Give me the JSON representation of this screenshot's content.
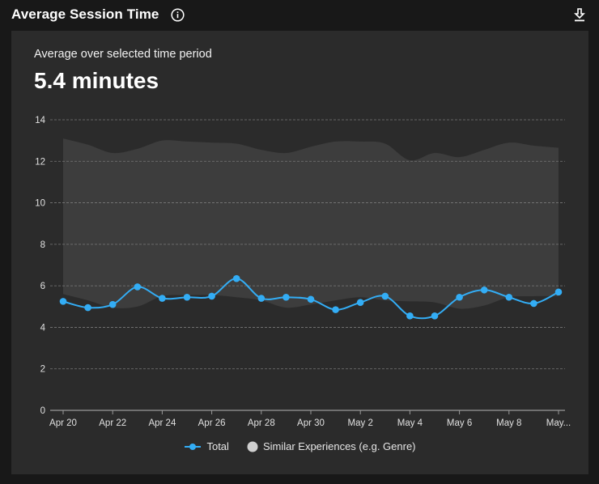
{
  "header": {
    "title": "Average Session Time",
    "info_icon": "info-circle-icon",
    "download_icon": "download-icon"
  },
  "summary": {
    "caption": "Average over selected time period",
    "value": "5.4 minutes"
  },
  "legend": {
    "total_label": "Total",
    "similar_label": "Similar Experiences (e.g. Genre)"
  },
  "colors": {
    "total": "#33adf5",
    "band": "#3d3d3d",
    "panel": "#2b2b2b",
    "background": "#181818",
    "grid": "#7a7a7a"
  },
  "chart_data": {
    "type": "line",
    "title": "Average Session Time",
    "xlabel": "",
    "ylabel": "",
    "ylim": [
      0,
      14
    ],
    "yticks": [
      0,
      2,
      4,
      6,
      8,
      10,
      12,
      14
    ],
    "grid": true,
    "legend_position": "bottom",
    "x": [
      "Apr 20",
      "Apr 21",
      "Apr 22",
      "Apr 23",
      "Apr 24",
      "Apr 25",
      "Apr 26",
      "Apr 27",
      "Apr 28",
      "Apr 29",
      "Apr 30",
      "May 1",
      "May 2",
      "May 3",
      "May 4",
      "May 5",
      "May 6",
      "May 7",
      "May 8",
      "May 9",
      "May 10"
    ],
    "xtick_labels": [
      "Apr 20",
      "Apr 22",
      "Apr 24",
      "Apr 26",
      "Apr 28",
      "Apr 30",
      "May 2",
      "May 4",
      "May 6",
      "May 8",
      "May..."
    ],
    "series": [
      {
        "name": "Total",
        "type": "line",
        "values": [
          5.25,
          4.95,
          5.1,
          5.95,
          5.4,
          5.45,
          5.5,
          6.35,
          5.4,
          5.45,
          5.35,
          4.85,
          5.2,
          5.5,
          4.55,
          4.55,
          5.45,
          5.8,
          5.45,
          5.15,
          5.7
        ]
      },
      {
        "name": "Similar Experiences (e.g. Genre)",
        "type": "range-area",
        "upper": [
          13.1,
          12.8,
          12.4,
          12.6,
          13.0,
          12.95,
          12.9,
          12.85,
          12.55,
          12.4,
          12.7,
          12.95,
          12.95,
          12.85,
          12.05,
          12.4,
          12.2,
          12.55,
          12.9,
          12.75,
          12.65
        ],
        "lower": [
          5.6,
          5.3,
          4.95,
          5.0,
          5.5,
          5.55,
          5.55,
          5.45,
          5.3,
          4.95,
          5.1,
          5.3,
          5.45,
          5.3,
          5.25,
          5.2,
          4.9,
          5.05,
          5.45,
          5.5,
          5.5
        ]
      }
    ]
  }
}
